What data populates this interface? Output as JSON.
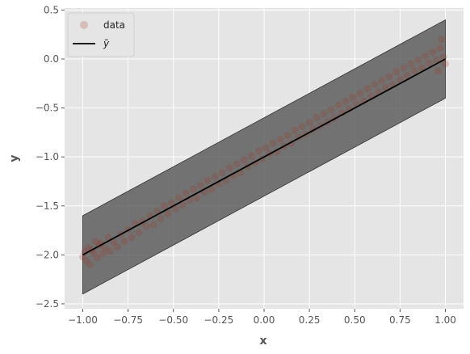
{
  "chart_data": {
    "type": "scatter",
    "style": "ggplot",
    "xlabel": "x",
    "ylabel": "y",
    "xlim": [
      -1.1,
      1.1
    ],
    "ylim": [
      -2.55,
      0.52
    ],
    "xticks": [
      -1.0,
      -0.75,
      -0.5,
      -0.25,
      0.0,
      0.25,
      0.5,
      0.75,
      1.0
    ],
    "xtick_labels": [
      "−1.00",
      "−0.75",
      "−0.50",
      "−0.25",
      "0.00",
      "0.25",
      "0.50",
      "0.75",
      "1.00"
    ],
    "yticks": [
      -2.5,
      -2.0,
      -1.5,
      -1.0,
      -0.5,
      0.0,
      0.5
    ],
    "ytick_labels": [
      "−2.5",
      "−2.0",
      "−1.5",
      "−1.0",
      "−0.5",
      "0.0",
      "0.5"
    ],
    "grid": true,
    "legend_placement": "upper-left",
    "colors": {
      "background": "#e5e5e5",
      "grid": "#ffffff",
      "points": "#a0301f",
      "band": "#555555",
      "line": "#000000"
    },
    "series": [
      {
        "name": "data",
        "kind": "scatter",
        "noise_sd": 0.1,
        "points": [
          [
            -1.0,
            -2.02
          ],
          [
            -0.99,
            -1.97
          ],
          [
            -0.98,
            -2.06
          ],
          [
            -0.97,
            -1.93
          ],
          [
            -0.96,
            -2.1
          ],
          [
            -0.95,
            -1.95
          ],
          [
            -0.94,
            -1.98
          ],
          [
            -0.93,
            -1.86
          ],
          [
            -0.92,
            -2.03
          ],
          [
            -0.91,
            -1.9
          ],
          [
            -0.9,
            -1.88
          ],
          [
            -0.89,
            -1.99
          ],
          [
            -0.88,
            -1.93
          ],
          [
            -0.86,
            -1.82
          ],
          [
            -0.85,
            -1.96
          ],
          [
            -0.83,
            -1.87
          ],
          [
            -0.81,
            -1.92
          ],
          [
            -0.79,
            -1.79
          ],
          [
            -0.77,
            -1.86
          ],
          [
            -0.75,
            -1.74
          ],
          [
            -0.73,
            -1.82
          ],
          [
            -0.71,
            -1.68
          ],
          [
            -0.69,
            -1.77
          ],
          [
            -0.67,
            -1.66
          ],
          [
            -0.65,
            -1.71
          ],
          [
            -0.63,
            -1.6
          ],
          [
            -0.61,
            -1.69
          ],
          [
            -0.59,
            -1.55
          ],
          [
            -0.57,
            -1.63
          ],
          [
            -0.55,
            -1.5
          ],
          [
            -0.53,
            -1.58
          ],
          [
            -0.51,
            -1.47
          ],
          [
            -0.49,
            -1.53
          ],
          [
            -0.47,
            -1.42
          ],
          [
            -0.45,
            -1.49
          ],
          [
            -0.43,
            -1.37
          ],
          [
            -0.41,
            -1.44
          ],
          [
            -0.39,
            -1.33
          ],
          [
            -0.37,
            -1.42
          ],
          [
            -0.35,
            -1.29
          ],
          [
            -0.33,
            -1.36
          ],
          [
            -0.31,
            -1.24
          ],
          [
            -0.29,
            -1.33
          ],
          [
            -0.27,
            -1.2
          ],
          [
            -0.25,
            -1.27
          ],
          [
            -0.23,
            -1.16
          ],
          [
            -0.21,
            -1.24
          ],
          [
            -0.19,
            -1.11
          ],
          [
            -0.17,
            -1.19
          ],
          [
            -0.15,
            -1.07
          ],
          [
            -0.13,
            -1.16
          ],
          [
            -0.11,
            -1.03
          ],
          [
            -0.09,
            -1.1
          ],
          [
            -0.07,
            -0.99
          ],
          [
            -0.05,
            -1.06
          ],
          [
            -0.03,
            -0.94
          ],
          [
            -0.01,
            -1.02
          ],
          [
            0.01,
            -0.91
          ],
          [
            0.03,
            -0.97
          ],
          [
            0.05,
            -0.86
          ],
          [
            0.07,
            -0.95
          ],
          [
            0.09,
            -0.82
          ],
          [
            0.11,
            -0.89
          ],
          [
            0.13,
            -0.78
          ],
          [
            0.15,
            -0.86
          ],
          [
            0.17,
            -0.73
          ],
          [
            0.19,
            -0.8
          ],
          [
            0.21,
            -0.69
          ],
          [
            0.23,
            -0.77
          ],
          [
            0.25,
            -0.65
          ],
          [
            0.27,
            -0.72
          ],
          [
            0.29,
            -0.6
          ],
          [
            0.31,
            -0.68
          ],
          [
            0.33,
            -0.56
          ],
          [
            0.35,
            -0.64
          ],
          [
            0.37,
            -0.52
          ],
          [
            0.39,
            -0.6
          ],
          [
            0.41,
            -0.47
          ],
          [
            0.43,
            -0.55
          ],
          [
            0.45,
            -0.43
          ],
          [
            0.47,
            -0.51
          ],
          [
            0.49,
            -0.39
          ],
          [
            0.51,
            -0.46
          ],
          [
            0.53,
            -0.35
          ],
          [
            0.55,
            -0.43
          ],
          [
            0.57,
            -0.3
          ],
          [
            0.59,
            -0.38
          ],
          [
            0.61,
            -0.26
          ],
          [
            0.63,
            -0.34
          ],
          [
            0.65,
            -0.22
          ],
          [
            0.67,
            -0.29
          ],
          [
            0.69,
            -0.18
          ],
          [
            0.71,
            -0.26
          ],
          [
            0.73,
            -0.13
          ],
          [
            0.75,
            -0.21
          ],
          [
            0.77,
            -0.09
          ],
          [
            0.79,
            -0.17
          ],
          [
            0.81,
            -0.05
          ],
          [
            0.83,
            -0.12
          ],
          [
            0.85,
            -0.01
          ],
          [
            0.87,
            -0.09
          ],
          [
            0.89,
            0.03
          ],
          [
            0.91,
            -0.04
          ],
          [
            0.93,
            0.07
          ],
          [
            0.95,
            -0.01
          ],
          [
            0.97,
            0.11
          ],
          [
            0.99,
            0.02
          ],
          [
            1.0,
            -0.05
          ],
          [
            0.98,
            0.2
          ],
          [
            0.96,
            -0.12
          ]
        ]
      },
      {
        "name": "ỹ",
        "kind": "line",
        "x": [
          -1.0,
          1.0
        ],
        "y": [
          -2.0,
          0.0
        ]
      },
      {
        "name": "",
        "kind": "band",
        "x": [
          -1.0,
          1.0
        ],
        "lower": [
          -2.4,
          -0.4
        ],
        "upper": [
          -1.6,
          0.4
        ]
      }
    ]
  }
}
